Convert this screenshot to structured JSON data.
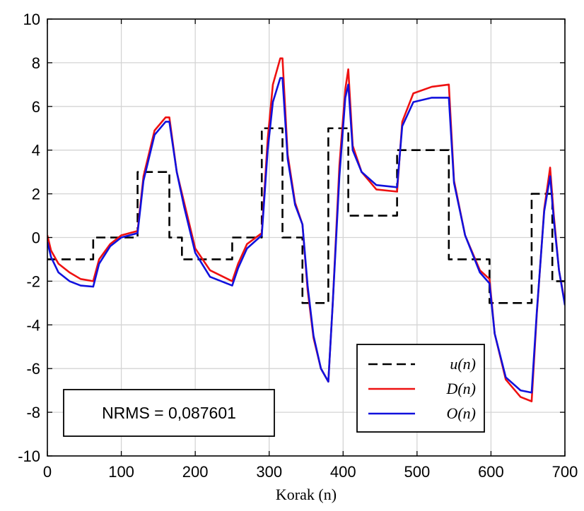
{
  "chart_data": {
    "type": "line",
    "xlabel": "Korak (n)",
    "ylabel": "",
    "xlim": [
      0,
      700
    ],
    "ylim": [
      -10,
      10
    ],
    "xticks": [
      0,
      100,
      200,
      300,
      400,
      500,
      600,
      700
    ],
    "yticks": [
      -10,
      -8,
      -6,
      -4,
      -2,
      0,
      2,
      4,
      6,
      8,
      10
    ],
    "grid": true,
    "legend_position": "bottom-right",
    "annotation": "NRMS = 0,087601",
    "series": [
      {
        "name": "u(n)",
        "style": "dashed",
        "color": "#000000",
        "x": [
          0,
          62,
          62,
          122,
          122,
          165,
          165,
          182,
          182,
          250,
          250,
          290,
          290,
          318,
          318,
          345,
          345,
          380,
          380,
          407,
          407,
          473,
          473,
          543,
          543,
          598,
          598,
          655,
          655,
          683,
          683,
          700
        ],
        "y": [
          -1,
          -1,
          0,
          0,
          3,
          3,
          0,
          0,
          -1,
          -1,
          0,
          0,
          5,
          5,
          0,
          0,
          -3,
          -3,
          5,
          5,
          1,
          1,
          4,
          4,
          -1,
          -1,
          -3,
          -3,
          2,
          2,
          -2,
          -2
        ]
      },
      {
        "name": "D(n)",
        "style": "solid",
        "color": "#ee1111",
        "x": [
          0,
          5,
          15,
          30,
          45,
          62,
          70,
          85,
          100,
          122,
          130,
          145,
          160,
          165,
          175,
          185,
          200,
          220,
          250,
          258,
          270,
          290,
          298,
          305,
          315,
          318,
          325,
          335,
          345,
          352,
          360,
          370,
          380,
          386,
          395,
          403,
          407,
          413,
          425,
          445,
          473,
          480,
          495,
          520,
          543,
          550,
          565,
          585,
          598,
          605,
          620,
          640,
          655,
          662,
          672,
          680,
          685,
          692,
          700
        ],
        "y": [
          0.1,
          -0.6,
          -1.2,
          -1.6,
          -1.9,
          -2.0,
          -1.0,
          -0.3,
          0.1,
          0.3,
          2.8,
          4.9,
          5.5,
          5.5,
          3.0,
          1.6,
          -0.5,
          -1.5,
          -2.0,
          -1.2,
          -0.3,
          0.2,
          4.5,
          7.0,
          8.2,
          8.2,
          3.8,
          1.6,
          0.6,
          -2.4,
          -4.6,
          -6.0,
          -6.6,
          -3.0,
          3.3,
          6.8,
          7.7,
          4.2,
          3.0,
          2.2,
          2.1,
          5.3,
          6.6,
          6.9,
          7.0,
          2.6,
          0.1,
          -1.5,
          -1.9,
          -4.4,
          -6.5,
          -7.3,
          -7.5,
          -3.5,
          1.3,
          3.2,
          1.0,
          -1.5,
          -3.0
        ]
      },
      {
        "name": "O(n)",
        "style": "solid",
        "color": "#1111dd",
        "x": [
          0,
          5,
          15,
          30,
          45,
          62,
          70,
          85,
          100,
          122,
          130,
          145,
          160,
          165,
          175,
          185,
          200,
          220,
          250,
          258,
          270,
          290,
          298,
          305,
          315,
          318,
          325,
          335,
          345,
          352,
          360,
          370,
          380,
          386,
          395,
          403,
          407,
          413,
          425,
          445,
          473,
          480,
          495,
          520,
          543,
          550,
          565,
          585,
          598,
          605,
          620,
          640,
          655,
          662,
          672,
          680,
          685,
          692,
          700
        ],
        "y": [
          -0.2,
          -0.9,
          -1.6,
          -2.0,
          -2.2,
          -2.25,
          -1.2,
          -0.4,
          0.0,
          0.2,
          2.6,
          4.7,
          5.3,
          5.3,
          3.0,
          1.4,
          -0.7,
          -1.8,
          -2.2,
          -1.4,
          -0.5,
          0.1,
          4.0,
          6.2,
          7.3,
          7.3,
          3.6,
          1.5,
          0.6,
          -2.2,
          -4.5,
          -6.0,
          -6.6,
          -3.0,
          2.8,
          6.4,
          7.0,
          4.0,
          3.0,
          2.4,
          2.3,
          5.1,
          6.2,
          6.4,
          6.4,
          2.5,
          0.1,
          -1.6,
          -2.1,
          -4.4,
          -6.4,
          -7.0,
          -7.1,
          -3.4,
          1.2,
          2.8,
          0.8,
          -1.5,
          -3.1
        ]
      }
    ]
  }
}
